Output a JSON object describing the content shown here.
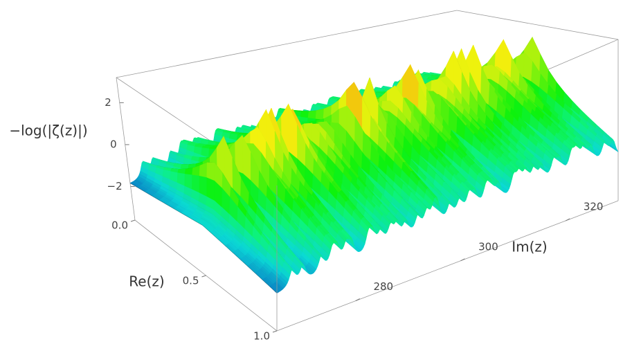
{
  "chart_data": {
    "type": "surface",
    "x_label": "Im(z)",
    "y_label": "Re(z)",
    "z_label": "−log(|ζ(z)|)",
    "xlim": [
      265,
      330
    ],
    "xticks": [
      280,
      300,
      320
    ],
    "ylim": [
      0,
      1
    ],
    "yticks": [
      {
        "value": 0,
        "label": "0.0"
      },
      {
        "value": 0.5,
        "label": "0.5"
      },
      {
        "value": 1,
        "label": "1.0"
      }
    ],
    "zlim": [
      -3.6,
      3.2
    ],
    "zticks": [
      {
        "value": -2,
        "label": "−2"
      },
      0,
      2
    ],
    "zeros": [
      267.92,
      269.97,
      273.46,
      275.59,
      276.45,
      278.25,
      279.23,
      282.47,
      283.21,
      284.84,
      286.67,
      287.91,
      289.58,
      291.85,
      293.56,
      294.97,
      295.57,
      297.98,
      299.84,
      301.65,
      302.7,
      304.86,
      305.73,
      307.22,
      310.11,
      311.17,
      312.43,
      313.99,
      315.48,
      317.73,
      318.85,
      321.16,
      322.14,
      323.47,
      324.86,
      327.44,
      329.03
    ]
  }
}
